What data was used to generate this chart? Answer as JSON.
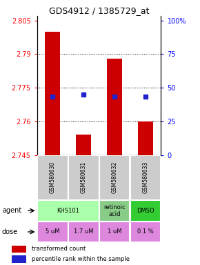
{
  "title": "GDS4912 / 1385729_at",
  "samples": [
    "GSM580630",
    "GSM580631",
    "GSM580632",
    "GSM580633"
  ],
  "bar_values": [
    2.8,
    2.754,
    2.788,
    2.76
  ],
  "bar_bottom": 2.745,
  "percentile_values": [
    2.771,
    2.772,
    2.771,
    2.771
  ],
  "ylim_left": [
    2.745,
    2.807
  ],
  "yticks_left": [
    2.745,
    2.76,
    2.775,
    2.79,
    2.805
  ],
  "yticks_right": [
    0,
    25,
    50,
    75,
    100
  ],
  "ytick_labels_left": [
    "2.745",
    "2.76",
    "2.775",
    "2.79",
    "2.805"
  ],
  "ytick_labels_right": [
    "0",
    "25",
    "50",
    "75",
    "100%"
  ],
  "bar_color": "#cc0000",
  "dot_color": "#2222cc",
  "agent_groups": [
    {
      "label": "KHS101",
      "start": 0,
      "end": 2,
      "color": "#aaffaa"
    },
    {
      "label": "retinoic\nacid",
      "start": 2,
      "end": 3,
      "color": "#88cc88"
    },
    {
      "label": "DMSO",
      "start": 3,
      "end": 4,
      "color": "#33cc33"
    }
  ],
  "dose_labels": [
    "5 uM",
    "1.7 uM",
    "1 uM",
    "0.1 %"
  ],
  "dose_color": "#dd88dd",
  "sample_bg": "#cccccc",
  "legend_bar_label": "transformed count",
  "legend_dot_label": "percentile rank within the sample"
}
